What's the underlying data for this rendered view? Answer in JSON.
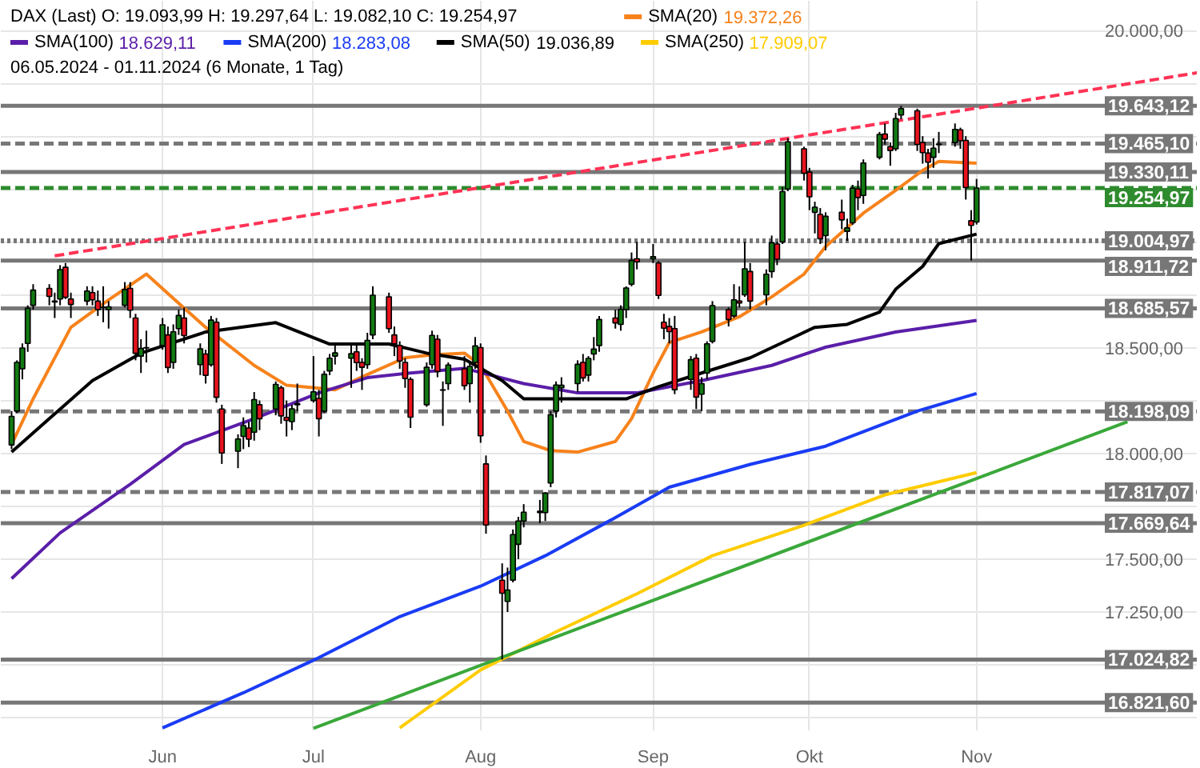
{
  "chart_data": {
    "type": "candlestick",
    "annotations": [
      "DAX (Last)  O: 19.093,99  H: 19.297,64  L: 19.082,10  C: 19.254,97",
      "19.372,26",
      "18.629,11",
      "18.283,08",
      "19.036,89",
      "17.909,07",
      "06.05.2024 - 01.11.2024 (6 Monate, 1 Tag)"
    ],
    "legend": "top left",
    "grid": true,
    "marker": "none",
    "xlim": [
      "2024-05-04",
      "2024-12-12"
    ],
    "xticks": [
      {
        "value": "2024-06-03",
        "label": "Jun"
      },
      {
        "value": "2024-07-01",
        "label": "Jul"
      },
      {
        "value": "2024-08-01",
        "label": "Aug"
      },
      {
        "value": "2024-09-02",
        "label": "Sep"
      },
      {
        "value": "2024-10-01",
        "label": "Okt"
      },
      {
        "value": "2024-11-01",
        "label": "Nov"
      }
    ],
    "ylim": [
      16690,
      20140
    ],
    "yticks": [
      {
        "value": 16750,
        "label": null
      },
      {
        "value": 17000,
        "label": null
      },
      {
        "value": 17250,
        "label": "17.250,00"
      },
      {
        "value": 17500,
        "label": "17.500,00"
      },
      {
        "value": 17750,
        "label": null
      },
      {
        "value": 18000,
        "label": "18.000,00"
      },
      {
        "value": 18250,
        "label": null
      },
      {
        "value": 18500,
        "label": "18.500,00"
      },
      {
        "value": 18750,
        "label": null
      },
      {
        "value": 19000,
        "label": null
      },
      {
        "value": 19250,
        "label": null
      },
      {
        "value": 19500,
        "label": null
      },
      {
        "value": 19750,
        "label": null
      },
      {
        "value": 20000,
        "label": "20.000,00"
      }
    ],
    "x": [
      "2024-05-06",
      "2024-05-07",
      "2024-05-08",
      "2024-05-09",
      "2024-05-10",
      "2024-05-13",
      "2024-05-14",
      "2024-05-15",
      "2024-05-16",
      "2024-05-17",
      "2024-05-20",
      "2024-05-21",
      "2024-05-22",
      "2024-05-23",
      "2024-05-24",
      "2024-05-27",
      "2024-05-28",
      "2024-05-29",
      "2024-05-30",
      "2024-05-31",
      "2024-06-03",
      "2024-06-04",
      "2024-06-05",
      "2024-06-06",
      "2024-06-07",
      "2024-06-10",
      "2024-06-11",
      "2024-06-12",
      "2024-06-13",
      "2024-06-14",
      "2024-06-17",
      "2024-06-18",
      "2024-06-19",
      "2024-06-20",
      "2024-06-21",
      "2024-06-24",
      "2024-06-25",
      "2024-06-26",
      "2024-06-27",
      "2024-06-28",
      "2024-07-01",
      "2024-07-02",
      "2024-07-03",
      "2024-07-04",
      "2024-07-05",
      "2024-07-08",
      "2024-07-09",
      "2024-07-10",
      "2024-07-11",
      "2024-07-12",
      "2024-07-15",
      "2024-07-16",
      "2024-07-17",
      "2024-07-18",
      "2024-07-19",
      "2024-07-22",
      "2024-07-23",
      "2024-07-24",
      "2024-07-25",
      "2024-07-26",
      "2024-07-29",
      "2024-07-30",
      "2024-07-31",
      "2024-08-01",
      "2024-08-02",
      "2024-08-05",
      "2024-08-06",
      "2024-08-07",
      "2024-08-08",
      "2024-08-09",
      "2024-08-12",
      "2024-08-13",
      "2024-08-14",
      "2024-08-15",
      "2024-08-16",
      "2024-08-19",
      "2024-08-20",
      "2024-08-21",
      "2024-08-22",
      "2024-08-23",
      "2024-08-26",
      "2024-08-27",
      "2024-08-28",
      "2024-08-29",
      "2024-08-30",
      "2024-09-02",
      "2024-09-03",
      "2024-09-04",
      "2024-09-05",
      "2024-09-06",
      "2024-09-09",
      "2024-09-10",
      "2024-09-11",
      "2024-09-12",
      "2024-09-13",
      "2024-09-16",
      "2024-09-17",
      "2024-09-18",
      "2024-09-19",
      "2024-09-20",
      "2024-09-23",
      "2024-09-24",
      "2024-09-25",
      "2024-09-26",
      "2024-09-27",
      "2024-09-30",
      "2024-10-01",
      "2024-10-02",
      "2024-10-03",
      "2024-10-04",
      "2024-10-07",
      "2024-10-08",
      "2024-10-09",
      "2024-10-10",
      "2024-10-11",
      "2024-10-14",
      "2024-10-15",
      "2024-10-16",
      "2024-10-17",
      "2024-10-18",
      "2024-10-21",
      "2024-10-22",
      "2024-10-23",
      "2024-10-24",
      "2024-10-25",
      "2024-10-28",
      "2024-10-29",
      "2024-10-30",
      "2024-10-31",
      "2024-11-01"
    ],
    "ohlc": [
      [
        18040,
        18200,
        18020,
        18175
      ],
      [
        18200,
        18440,
        18190,
        18430
      ],
      [
        18400,
        18520,
        18350,
        18498
      ],
      [
        18520,
        18700,
        18480,
        18686
      ],
      [
        18700,
        18800,
        18680,
        18772
      ],
      [
        18780,
        18800,
        18700,
        18742
      ],
      [
        18720,
        18760,
        18640,
        18716
      ],
      [
        18730,
        18890,
        18700,
        18869
      ],
      [
        18880,
        18900,
        18730,
        18738
      ],
      [
        18730,
        18760,
        18640,
        18704
      ],
      [
        18720,
        18790,
        18700,
        18768
      ],
      [
        18760,
        18790,
        18700,
        18726
      ],
      [
        18720,
        18770,
        18650,
        18680
      ],
      [
        18690,
        18790,
        18620,
        18691
      ],
      [
        18680,
        18720,
        18590,
        18693
      ],
      [
        18700,
        18810,
        18690,
        18775
      ],
      [
        18780,
        18810,
        18640,
        18677
      ],
      [
        18640,
        18660,
        18440,
        18473
      ],
      [
        18460,
        18540,
        18380,
        18496
      ],
      [
        18500,
        18580,
        18430,
        18498
      ],
      [
        18510,
        18640,
        18490,
        18608
      ],
      [
        18560,
        18600,
        18380,
        18406
      ],
      [
        18430,
        18610,
        18400,
        18575
      ],
      [
        18590,
        18680,
        18560,
        18652
      ],
      [
        18640,
        18690,
        18520,
        18557
      ],
      [
        18420,
        18520,
        18370,
        18494
      ],
      [
        18470,
        18490,
        18330,
        18369
      ],
      [
        18420,
        18650,
        18410,
        18630
      ],
      [
        18620,
        18640,
        18240,
        18265
      ],
      [
        18210,
        18230,
        17950,
        18002
      ],
      [
        18010,
        18090,
        17930,
        18068
      ],
      [
        18080,
        18170,
        18020,
        18131
      ],
      [
        18120,
        18150,
        18030,
        18067
      ],
      [
        18100,
        18290,
        18060,
        18254
      ],
      [
        18230,
        18250,
        18110,
        18164
      ],
      [
        18210,
        18340,
        18180,
        18326
      ],
      [
        18310,
        18320,
        18140,
        18177
      ],
      [
        18170,
        18250,
        18080,
        18156
      ],
      [
        18150,
        18230,
        18110,
        18211
      ],
      [
        18230,
        18330,
        18200,
        18235
      ],
      [
        18250,
        18460,
        18240,
        18291
      ],
      [
        18260,
        18300,
        18080,
        18164
      ],
      [
        18200,
        18390,
        18190,
        18374
      ],
      [
        18390,
        18470,
        18370,
        18450
      ],
      [
        18460,
        18510,
        18420,
        18475
      ],
      [
        18450,
        18520,
        18310,
        18472
      ],
      [
        18480,
        18510,
        18390,
        18429
      ],
      [
        18430,
        18450,
        18300,
        18407
      ],
      [
        18420,
        18570,
        18400,
        18534
      ],
      [
        18560,
        18790,
        18540,
        18748
      ],
      [
        18740,
        18760,
        18570,
        18590
      ],
      [
        18560,
        18600,
        18460,
        18518
      ],
      [
        18510,
        18530,
        18400,
        18437
      ],
      [
        18430,
        18450,
        18310,
        18354
      ],
      [
        18350,
        18360,
        18120,
        18171
      ],
      [
        18230,
        18430,
        18220,
        18407
      ],
      [
        18420,
        18580,
        18400,
        18558
      ],
      [
        18540,
        18560,
        18360,
        18387
      ],
      [
        18300,
        18340,
        18130,
        18299
      ],
      [
        18330,
        18430,
        18300,
        18418
      ],
      [
        18400,
        18460,
        18300,
        18320
      ],
      [
        18330,
        18430,
        18240,
        18411
      ],
      [
        18430,
        18550,
        18400,
        18508
      ],
      [
        18500,
        18520,
        18050,
        18083
      ],
      [
        17950,
        17990,
        17620,
        17661
      ],
      [
        17400,
        17480,
        17024.82,
        17339
      ],
      [
        17300,
        17460,
        17250,
        17354
      ],
      [
        17400,
        17640,
        17390,
        17616
      ],
      [
        17570,
        17700,
        17500,
        17680
      ],
      [
        17680,
        17760,
        17650,
        17722
      ],
      [
        17720,
        17780,
        17669.64,
        17726
      ],
      [
        17720,
        17817.07,
        17680,
        17812
      ],
      [
        17860,
        18200,
        17840,
        18183
      ],
      [
        18200,
        18340,
        18170,
        18323
      ],
      [
        18310,
        18360,
        18240,
        18322
      ],
      [
        18330,
        18440,
        18290,
        18421
      ],
      [
        18430,
        18470,
        18340,
        18357
      ],
      [
        18370,
        18460,
        18340,
        18449
      ],
      [
        18470,
        18550,
        18440,
        18493
      ],
      [
        18510,
        18650,
        18480,
        18633
      ],
      [
        18640,
        18680,
        18590,
        18617
      ],
      [
        18610,
        18700,
        18580,
        18681
      ],
      [
        18680,
        18790,
        18640,
        18782
      ],
      [
        18800,
        18950,
        18790,
        18912
      ],
      [
        18920,
        19000,
        18870,
        18906
      ],
      [
        18920,
        18990,
        18900,
        18930
      ],
      [
        18900,
        18910,
        18730,
        18747
      ],
      [
        18620,
        18660,
        18540,
        18592
      ],
      [
        18600,
        18640,
        18520,
        18576
      ],
      [
        18590,
        18650,
        18280,
        18301
      ],
      [
        18350,
        18460,
        18300,
        18443
      ],
      [
        18450,
        18470,
        18210,
        18266
      ],
      [
        18280,
        18360,
        18200,
        18330
      ],
      [
        18380,
        18530,
        18350,
        18518
      ],
      [
        18530,
        18720,
        18520,
        18699
      ],
      [
        18680,
        18690,
        18600,
        18633
      ],
      [
        18650,
        18800,
        18640,
        18726
      ],
      [
        18720,
        18790,
        18690,
        18711
      ],
      [
        18750,
        19000,
        18740,
        18873
      ],
      [
        18860,
        18900,
        18680,
        18720
      ],
      [
        18750,
        18870,
        18700,
        18847
      ],
      [
        18860,
        19030,
        18830,
        18996
      ],
      [
        18990,
        19000,
        18890,
        18918
      ],
      [
        19000,
        19260,
        18990,
        19238
      ],
      [
        19250,
        19490,
        19240,
        19473
      ],
      [
        19440,
        19450,
        19290,
        19325
      ],
      [
        19330,
        19350,
        19150,
        19213
      ],
      [
        19140,
        19190,
        19040,
        19164
      ],
      [
        19130,
        19160,
        18990,
        19015
      ],
      [
        19030,
        19140,
        18960,
        19121
      ],
      [
        19140,
        19200,
        19060,
        19104
      ],
      [
        19050,
        19110,
        19004.97,
        19066
      ],
      [
        19090,
        19270,
        19080,
        19254
      ],
      [
        19250,
        19290,
        19150,
        19210
      ],
      [
        19220,
        19390,
        19180,
        19373
      ],
      [
        19400,
        19520,
        19390,
        19508
      ],
      [
        19510,
        19560,
        19460,
        19486
      ],
      [
        19450,
        19470,
        19360,
        19432
      ],
      [
        19440,
        19610,
        19430,
        19583
      ],
      [
        19600,
        19643.12,
        19580,
        19630
      ],
      [
        19620,
        19630,
        19430,
        19461
      ],
      [
        19470,
        19500,
        19370,
        19422
      ],
      [
        19420,
        19440,
        19300,
        19377
      ],
      [
        19400,
        19490,
        19350,
        19443
      ],
      [
        19460,
        19520,
        19420,
        19463
      ],
      [
        19470,
        19560,
        19450,
        19532
      ],
      [
        19530,
        19540,
        19440,
        19478
      ],
      [
        19480,
        19500,
        19200,
        19257
      ],
      [
        19100,
        19150,
        18911.72,
        19078
      ],
      [
        19093.99,
        19297.64,
        19082.1,
        19254.97
      ]
    ],
    "series": [
      {
        "name": "SMA(20)",
        "type": "line",
        "color": "#f7821b",
        "line_style": "solid",
        "x": [
          "2024-05-06",
          "2024-05-10",
          "2024-05-17",
          "2024-05-24",
          "2024-05-31",
          "2024-06-05",
          "2024-06-11",
          "2024-06-20",
          "2024-06-26",
          "2024-07-02",
          "2024-07-05",
          "2024-07-11",
          "2024-07-18",
          "2024-07-23",
          "2024-07-29",
          "2024-08-01",
          "2024-08-06",
          "2024-08-09",
          "2024-08-14",
          "2024-08-19",
          "2024-08-26",
          "2024-08-29",
          "2024-09-02",
          "2024-09-05",
          "2024-09-11",
          "2024-09-18",
          "2024-09-24",
          "2024-09-30",
          "2024-10-04",
          "2024-10-11",
          "2024-10-17",
          "2024-10-22",
          "2024-10-25",
          "2024-11-01"
        ],
        "values": [
          18042,
          18258,
          18596,
          18726,
          18848,
          18733,
          18596,
          18416,
          18322,
          18308,
          18301,
          18373,
          18452,
          18466,
          18474,
          18416,
          18200,
          18056,
          18013,
          18006,
          18056,
          18164,
          18380,
          18524,
          18574,
          18646,
          18740,
          18848,
          18978,
          19136,
          19244,
          19338,
          19381,
          19372.26
        ]
      },
      {
        "name": "SMA(100)",
        "type": "line",
        "color": "#5a1ea8",
        "line_style": "solid",
        "x": [
          "2024-05-06",
          "2024-05-15",
          "2024-05-28",
          "2024-06-07",
          "2024-06-20",
          "2024-07-02",
          "2024-07-11",
          "2024-07-19",
          "2024-07-29",
          "2024-08-09",
          "2024-08-19",
          "2024-08-30",
          "2024-09-11",
          "2024-09-24",
          "2024-10-04",
          "2024-10-17",
          "2024-11-01"
        ],
        "values": [
          17408,
          17624,
          17854,
          18042,
          18164,
          18286,
          18358,
          18380,
          18402,
          18330,
          18286,
          18286,
          18344,
          18416,
          18502,
          18574,
          18629.11
        ]
      },
      {
        "name": "SMA(200)",
        "type": "line",
        "color": "#1a3cf5",
        "line_style": "solid",
        "x": [
          "2024-06-03",
          "2024-06-18",
          "2024-07-02",
          "2024-07-17",
          "2024-08-01",
          "2024-08-13",
          "2024-08-26",
          "2024-09-05",
          "2024-09-20",
          "2024-10-04",
          "2024-10-21",
          "2024-11-01"
        ],
        "values": [
          16702,
          16868,
          17034,
          17228,
          17372,
          17516,
          17696,
          17840,
          17948,
          18034,
          18200,
          18283.08
        ]
      },
      {
        "name": "SMA(50)",
        "type": "line",
        "color": "#000000",
        "line_style": "solid",
        "x": [
          "2024-05-06",
          "2024-05-13",
          "2024-05-21",
          "2024-05-30",
          "2024-06-11",
          "2024-06-24",
          "2024-07-04",
          "2024-07-15",
          "2024-07-22",
          "2024-07-29",
          "2024-08-05",
          "2024-08-09",
          "2024-08-15",
          "2024-08-21",
          "2024-08-28",
          "2024-09-03",
          "2024-09-11",
          "2024-09-20",
          "2024-09-26",
          "2024-10-02",
          "2024-10-08",
          "2024-10-14",
          "2024-10-17",
          "2024-10-22",
          "2024-10-25",
          "2024-11-01"
        ],
        "values": [
          18006,
          18164,
          18344,
          18474,
          18574,
          18618,
          18517,
          18517,
          18474,
          18445,
          18344,
          18258,
          18258,
          18258,
          18258,
          18315,
          18380,
          18452,
          18524,
          18596,
          18610,
          18668,
          18776,
          18884,
          18992,
          19036.89
        ]
      },
      {
        "name": "SMA(250)",
        "type": "line",
        "color": "#ffcc00",
        "line_style": "solid",
        "x": [
          "2024-07-17",
          "2024-08-01",
          "2024-08-15",
          "2024-08-30",
          "2024-09-13",
          "2024-09-30",
          "2024-10-15",
          "2024-11-01"
        ],
        "values": [
          16702,
          16976,
          17156,
          17336,
          17516,
          17660,
          17804,
          17909.07
        ]
      },
      {
        "type": "line",
        "color": "#3aa83a",
        "line_style": "solid",
        "x": [
          "2024-07-01",
          "2024-11-29"
        ],
        "values": [
          16700,
          18150
        ]
      },
      {
        "type": "line",
        "color": "#ff3355",
        "line_style": "dashed",
        "x": [
          "2024-05-14",
          "2024-12-12"
        ],
        "values": [
          18934,
          19800
        ]
      }
    ],
    "ref_lines": [
      {
        "axis": "y",
        "value": 19643.12,
        "label": "19.643,12",
        "color": "#777777",
        "line_style": "solid"
      },
      {
        "axis": "y",
        "value": 19465.1,
        "label": "19.465,10",
        "color": "#777777",
        "line_style": "dashed"
      },
      {
        "axis": "y",
        "value": 19330.11,
        "label": "19.330,11",
        "color": "#777777",
        "line_style": "solid"
      },
      {
        "axis": "y",
        "value": 19254.97,
        "label": "19.254,97",
        "color": "#2e8b2e",
        "line_style": "dashed"
      },
      {
        "axis": "y",
        "value": 19004.97,
        "label": "19.004,97",
        "color": "#777777",
        "line_style": "dotted"
      },
      {
        "axis": "y",
        "value": 18911.72,
        "label": "18.911,72",
        "color": "#777777",
        "line_style": "solid"
      },
      {
        "axis": "y",
        "value": 18685.57,
        "label": "18.685,57",
        "color": "#777777",
        "line_style": "solid"
      },
      {
        "axis": "y",
        "value": 18198.09,
        "label": "18.198,09",
        "color": "#777777",
        "line_style": "dashed"
      },
      {
        "axis": "y",
        "value": 17817.07,
        "label": "17.817,07",
        "color": "#777777",
        "line_style": "dashed"
      },
      {
        "axis": "y",
        "value": 17669.64,
        "label": "17.669,64",
        "color": "#777777",
        "line_style": "solid"
      },
      {
        "axis": "y",
        "value": 17024.82,
        "label": "17.024,82",
        "color": "#777777",
        "line_style": "solid"
      },
      {
        "axis": "y",
        "value": 16821.6,
        "label": "16.821,60",
        "color": "#777777",
        "line_style": "solid"
      }
    ]
  }
}
